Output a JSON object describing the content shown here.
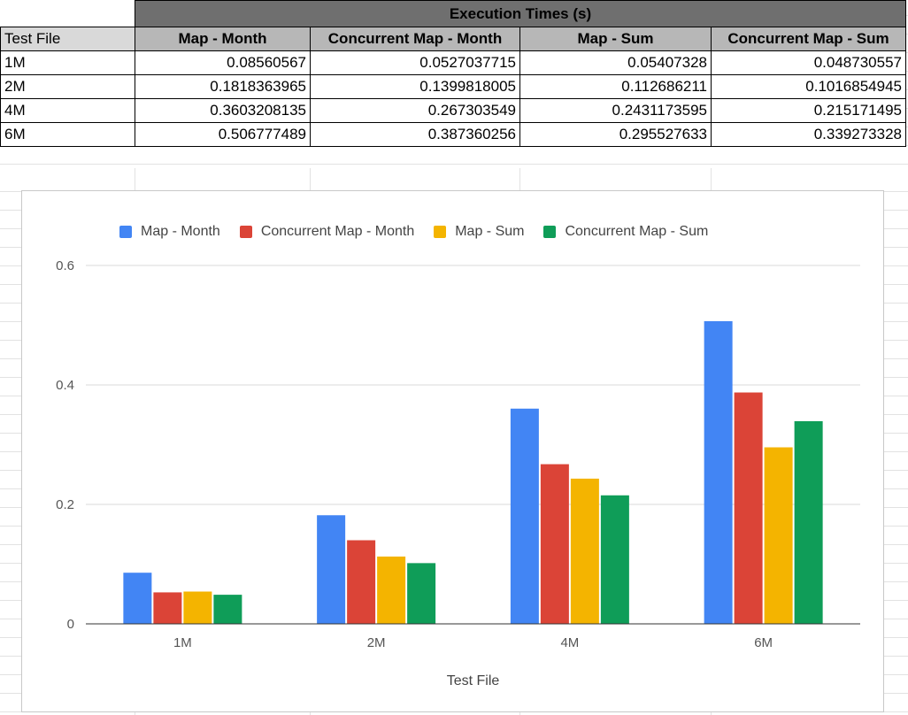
{
  "table": {
    "title": "Execution Times (s)",
    "row_header_label": "Test File",
    "columns": [
      "Map - Month",
      "Concurrent Map - Month",
      "Map - Sum",
      "Concurrent Map - Sum"
    ],
    "rows": [
      {
        "label": "1M",
        "values": [
          "0.08560567",
          "0.0527037715",
          "0.05407328",
          "0.048730557"
        ]
      },
      {
        "label": "2M",
        "values": [
          "0.1818363965",
          "0.1399818005",
          "0.112686211",
          "0.1016854945"
        ]
      },
      {
        "label": "4M",
        "values": [
          "0.3603208135",
          "0.267303549",
          "0.2431173595",
          "0.215171495"
        ]
      },
      {
        "label": "6M",
        "values": [
          "0.506777489",
          "0.387360256",
          "0.295527633",
          "0.339273328"
        ]
      }
    ]
  },
  "chart_data": {
    "type": "bar",
    "title": "",
    "xlabel": "Test File",
    "ylabel": "",
    "categories": [
      "1M",
      "2M",
      "4M",
      "6M"
    ],
    "ylim": [
      0,
      0.6
    ],
    "yticks": [
      0,
      0.2,
      0.4,
      0.6
    ],
    "ytick_labels": [
      "0",
      "0.2",
      "0.4",
      "0.6"
    ],
    "grid": true,
    "legend_position": "top",
    "series": [
      {
        "name": "Map - Month",
        "color": "#4285f4",
        "values": [
          0.08560567,
          0.1818363965,
          0.3603208135,
          0.506777489
        ]
      },
      {
        "name": "Concurrent Map - Month",
        "color": "#db4437",
        "values": [
          0.0527037715,
          0.1399818005,
          0.267303549,
          0.387360256
        ]
      },
      {
        "name": "Map - Sum",
        "color": "#f4b400",
        "values": [
          0.05407328,
          0.112686211,
          0.2431173595,
          0.295527633
        ]
      },
      {
        "name": "Concurrent Map - Sum",
        "color": "#0f9d58",
        "values": [
          0.048730557,
          0.1016854945,
          0.215171495,
          0.339273328
        ]
      }
    ]
  }
}
